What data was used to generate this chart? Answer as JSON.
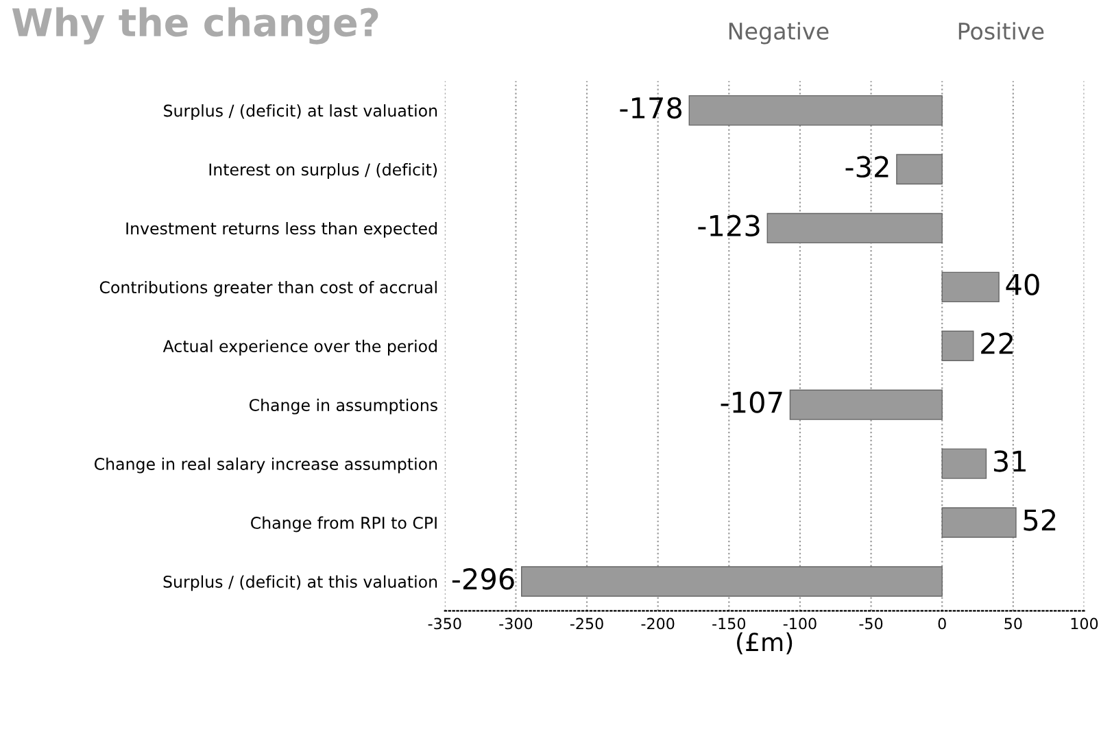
{
  "chart_data": {
    "type": "bar",
    "orientation": "horizontal",
    "title": "Why the change?",
    "xlabel": "(£m)",
    "categories": [
      "Surplus / (deficit) at last valuation",
      "Interest on surplus / (deficit)",
      "Investment returns less than expected",
      "Contributions greater than cost of accrual",
      "Actual experience over the period",
      "Change in assumptions",
      "Change in real salary increase assumption",
      "Change from RPI to CPI",
      "Surplus / (deficit) at this valuation"
    ],
    "values": [
      -178,
      -32,
      -123,
      40,
      22,
      -107,
      31,
      52,
      -296
    ],
    "color": "#9a9a9a",
    "data_labels": true,
    "xlim": [
      -350,
      100
    ],
    "xticks": [
      -350,
      -300,
      -250,
      -200,
      -150,
      -100,
      -50,
      0,
      50,
      100
    ],
    "grid": "x",
    "annotations": [
      "Negative",
      "Positive"
    ]
  }
}
